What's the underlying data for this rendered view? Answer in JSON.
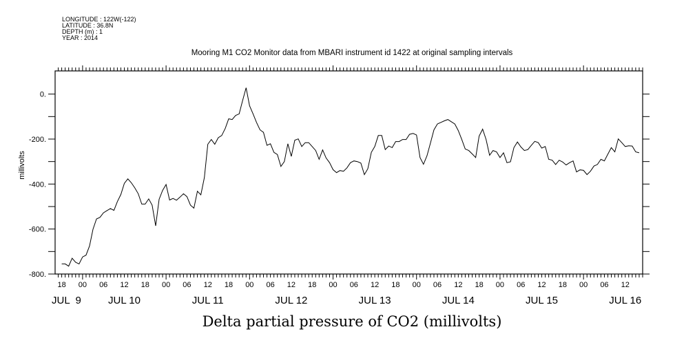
{
  "header": {
    "longitude": "LONGITUDE : 122W(-122)",
    "latitude": "LATITUDE : 36.8N",
    "depth": "DEPTH (m) : 1",
    "year": "YEAR : 2014"
  },
  "chart_data": {
    "type": "line",
    "title": "Mooring M1 CO2 Monitor data from MBARI instrument id 1422 at original sampling intervals",
    "xlabel": "Delta partial pressure of CO2 (millivolts)",
    "ylabel": "millivolts",
    "x_units": "hours relative to JUL 10 00:00, 2014",
    "xlim": [
      -7.9,
      161
    ],
    "ylim": [
      -800,
      103
    ],
    "grid": false,
    "line_color": "#000000",
    "x_start_hour": -6,
    "x_step_hours": 1,
    "values": [
      -755,
      -755,
      -765,
      -730,
      -748,
      -755,
      -724,
      -716,
      -675,
      -601,
      -555,
      -548,
      -528,
      -518,
      -509,
      -517,
      -478,
      -446,
      -397,
      -377,
      -394,
      -417,
      -443,
      -489,
      -489,
      -466,
      -494,
      -586,
      -468,
      -428,
      -402,
      -471,
      -464,
      -472,
      -458,
      -443,
      -456,
      -494,
      -507,
      -432,
      -448,
      -371,
      -223,
      -202,
      -223,
      -194,
      -184,
      -153,
      -110,
      -113,
      -95,
      -88,
      -29,
      28,
      -52,
      -88,
      -126,
      -159,
      -170,
      -228,
      -221,
      -259,
      -269,
      -322,
      -300,
      -221,
      -277,
      -205,
      -199,
      -233,
      -216,
      -216,
      -233,
      -251,
      -290,
      -248,
      -284,
      -305,
      -336,
      -349,
      -340,
      -343,
      -328,
      -305,
      -297,
      -300,
      -307,
      -358,
      -332,
      -259,
      -233,
      -184,
      -184,
      -247,
      -231,
      -238,
      -211,
      -211,
      -202,
      -202,
      -179,
      -175,
      -182,
      -282,
      -312,
      -274,
      -218,
      -159,
      -133,
      -126,
      -119,
      -113,
      -123,
      -133,
      -162,
      -202,
      -244,
      -251,
      -266,
      -282,
      -187,
      -156,
      -202,
      -272,
      -251,
      -257,
      -282,
      -261,
      -305,
      -301,
      -238,
      -213,
      -235,
      -251,
      -247,
      -228,
      -210,
      -216,
      -240,
      -233,
      -290,
      -294,
      -313,
      -294,
      -302,
      -315,
      -305,
      -297,
      -346,
      -337,
      -339,
      -358,
      -343,
      -320,
      -313,
      -290,
      -297,
      -267,
      -238,
      -257,
      -199,
      -216,
      -233,
      -230,
      -231,
      -257,
      -261
    ],
    "y_ticks": [
      {
        "value": 0,
        "label": "0."
      },
      {
        "value": -200,
        "label": "-200."
      },
      {
        "value": -400,
        "label": "-400."
      },
      {
        "value": -600,
        "label": "-600."
      },
      {
        "value": -800,
        "label": "-800."
      }
    ],
    "y_minor_ticks": [
      -100,
      -300,
      -500,
      -700
    ],
    "x_ticks": [
      {
        "hour": -6,
        "label": "18"
      },
      {
        "hour": 0,
        "label": "00"
      },
      {
        "hour": 6,
        "label": "06"
      },
      {
        "hour": 12,
        "label": "12"
      },
      {
        "hour": 18,
        "label": "18"
      },
      {
        "hour": 24,
        "label": "00"
      },
      {
        "hour": 30,
        "label": "06"
      },
      {
        "hour": 36,
        "label": "12"
      },
      {
        "hour": 42,
        "label": "18"
      },
      {
        "hour": 48,
        "label": "00"
      },
      {
        "hour": 54,
        "label": "06"
      },
      {
        "hour": 60,
        "label": "12"
      },
      {
        "hour": 66,
        "label": "18"
      },
      {
        "hour": 72,
        "label": "00"
      },
      {
        "hour": 78,
        "label": "06"
      },
      {
        "hour": 84,
        "label": "12"
      },
      {
        "hour": 90,
        "label": "18"
      },
      {
        "hour": 96,
        "label": "00"
      },
      {
        "hour": 102,
        "label": "06"
      },
      {
        "hour": 108,
        "label": "12"
      },
      {
        "hour": 114,
        "label": "18"
      },
      {
        "hour": 120,
        "label": "00"
      },
      {
        "hour": 126,
        "label": "06"
      },
      {
        "hour": 132,
        "label": "12"
      },
      {
        "hour": 138,
        "label": "18"
      },
      {
        "hour": 144,
        "label": "00"
      },
      {
        "hour": 150,
        "label": "06"
      },
      {
        "hour": 156,
        "label": "12"
      }
    ],
    "date_labels": [
      {
        "hour": -2,
        "label": "JUL  9"
      },
      {
        "hour": 12,
        "label": "JUL 10"
      },
      {
        "hour": 36,
        "label": "JUL 11"
      },
      {
        "hour": 60,
        "label": "JUL 12"
      },
      {
        "hour": 84,
        "label": "JUL 13"
      },
      {
        "hour": 108,
        "label": "JUL 14"
      },
      {
        "hour": 132,
        "label": "JUL 15"
      },
      {
        "hour": 156,
        "label": "JUL 16"
      }
    ]
  }
}
